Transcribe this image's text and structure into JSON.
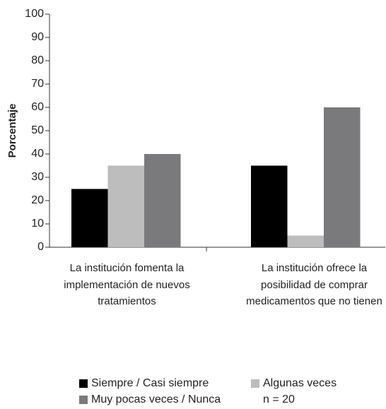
{
  "chart_data": {
    "type": "bar",
    "y_label": "Porcentaje",
    "categories": [
      "La institución fomenta la implementación de nuevos tratamientos",
      "La institución ofrece la posibilidad de comprar medicamentos que no tienen"
    ],
    "series": [
      {
        "name": "Siempre / Casi siempre",
        "color": "#000000",
        "values": [
          25,
          35
        ]
      },
      {
        "name": "Algunas veces",
        "color": "#bdbdbd",
        "values": [
          35,
          5
        ]
      },
      {
        "name": "Muy pocas veces / Nunca",
        "color": "#7a7a7c",
        "values": [
          40,
          60
        ]
      }
    ],
    "annotation": "n = 20",
    "ylim": [
      0,
      100
    ],
    "yticks": [
      0,
      10,
      20,
      30,
      40,
      50,
      60,
      70,
      80,
      90,
      100
    ],
    "grid": false
  }
}
